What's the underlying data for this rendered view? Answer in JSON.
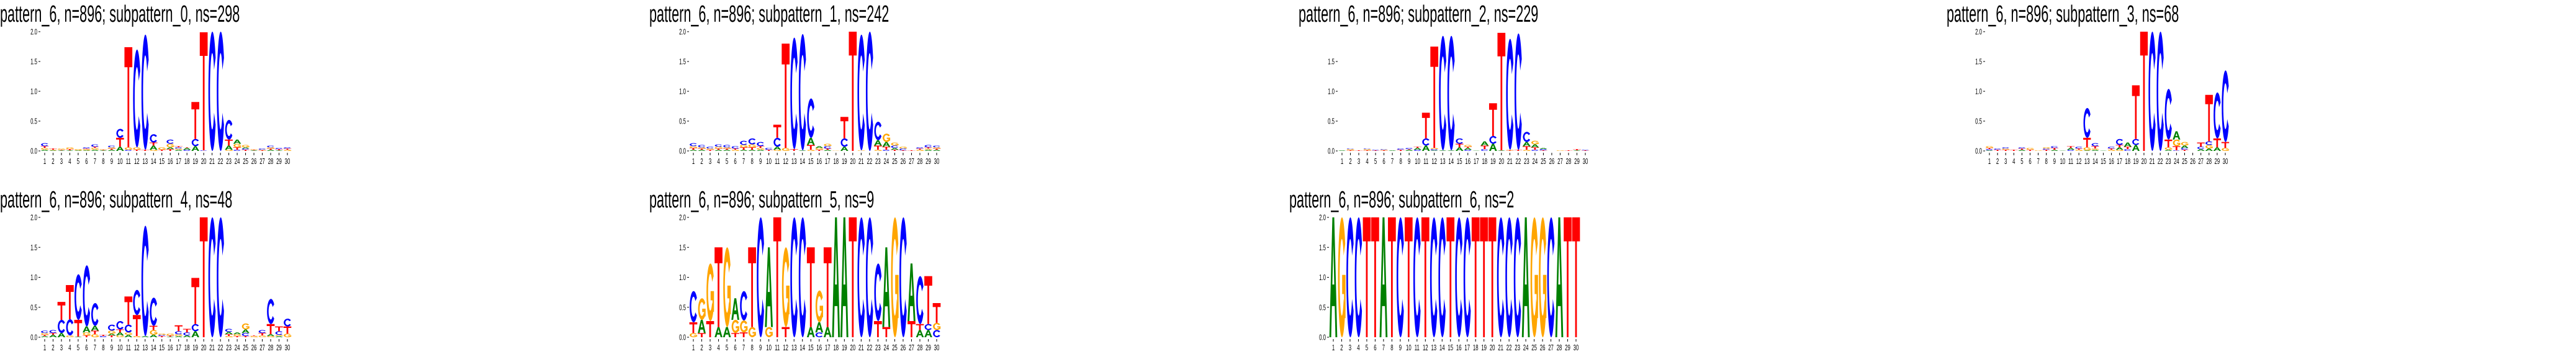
{
  "colors": {
    "A": "#008000",
    "C": "#0000ff",
    "G": "#ffa500",
    "T": "#ff0000"
  },
  "chart_data": [
    {
      "type": "sequence-logo",
      "title": "pattern_6, n=896; subpattern_0, ns=298",
      "ylim": [
        0,
        2.0
      ],
      "yticks": [
        "0.0",
        "0.5",
        "1.0",
        "1.5",
        "2.0"
      ],
      "positions": [
        "1",
        "2",
        "3",
        "4",
        "5",
        "6",
        "7",
        "8",
        "9",
        "10",
        "11",
        "12",
        "13",
        "14",
        "15",
        "16",
        "17",
        "18",
        "19",
        "20",
        "21",
        "22",
        "23",
        "24",
        "25",
        "26",
        "27",
        "28",
        "29",
        "30"
      ],
      "stacks": [
        "A.02 G.03 T.03 C.05",
        "A.01 G.01 T.02",
        "A.01 T.01 G.02",
        "A.01 T.02 G.03",
        "A.01 G.02",
        "A.01 G.02 T.01 C.02",
        "A.02 G.03 T.02 C.04",
        "A.01 T.01 G.01",
        "A.02 T.02 G.02 C.03",
        "A.07 T.15 C.15",
        "C.02 G.04 T1.68",
        "T.02 G.04 C1.64",
        "T.02 C1.93",
        "G.02 A.07 T.05 C.14",
        "T.02 G.04",
        "T.03 A.03 G.06 C.07",
        "A.02 G.02 C.02 T.02",
        "C.02 A.03 T.01",
        "A.08 C.12 T.62",
        "C.01 T1.98",
        "C2.0",
        "C2.0",
        "G.02 A.07 T.10 C.33",
        "C.02 T.04 G.06 A.07",
        "T.02 C.02 A.02 G.04",
        "A.01 T.01 G.01",
        "T.01 G.01 C.02",
        "A.02 T.02 G.02 C.03",
        "A.01 T.02 C.02",
        "G.02 T.02 C.02"
      ]
    },
    {
      "type": "sequence-logo",
      "title": "pattern_6, n=896; subpattern_1, ns=242",
      "ylim": [
        0,
        2.0
      ],
      "yticks": [
        "0.0",
        "0.5",
        "1.0",
        "1.5",
        "2.0"
      ],
      "positions": [
        "1",
        "2",
        "3",
        "4",
        "5",
        "6",
        "7",
        "8",
        "9",
        "10",
        "11",
        "12",
        "13",
        "14",
        "15",
        "16",
        "17",
        "18",
        "19",
        "20",
        "21",
        "22",
        "23",
        "24",
        "25",
        "26",
        "27",
        "28",
        "29",
        "30"
      ],
      "stacks": [
        "A.02 T.03 G.03 C.05",
        "A.02 T.02 G.02 C.04",
        "T.02 G.02 C.03",
        "A.02 T.02 G.03 C.04",
        "A.02 T.02 G.02 C.04",
        "G.02 T.02 C.04",
        "A.02 T.04 G.04 C.07",
        "A.02 T.04 G.05 C.10",
        "A.02 G.03 T.03 C.07",
        "T.02 C.03",
        "G.02 A.05 C.15 T.22",
        "G.05 T1.75",
        "T.03 C1.87",
        "A.01 C1.95",
        "G.02 T.08 A.12 C.66",
        "T.02 G.03 A.03",
        "A.02 T.02 C.04 G.04",
        "G.005",
        "A.07 C.14 T.36",
        "T2.0",
        "G.01 C1.94",
        "C2.0",
        "G.02 T.07 A.09 C.31",
        "C.02 T.05 A.08 G.14",
        "T.02 A.03 C.04 G.05",
        "T.01 C.03 G.03",
        "T.01",
        "G.02 T.02 C.02",
        "A.02 G.02 T.02 C.04",
        "A.02 T.02 G.02 C.03"
      ]
    },
    {
      "type": "sequence-logo",
      "title": "pattern_6, n=896; subpattern_2, ns=229",
      "ylim": [
        0,
        1.98
      ],
      "yticks": [
        "0.0",
        "0.5",
        "1.0",
        "1.5"
      ],
      "positions": [
        "1",
        "2",
        "3",
        "4",
        "5",
        "6",
        "7",
        "8",
        "9",
        "10",
        "11",
        "12",
        "13",
        "14",
        "15",
        "16",
        "17",
        "18",
        "19",
        "20",
        "21",
        "22",
        "23",
        "24",
        "25",
        "26",
        "27",
        "28",
        "29",
        "30"
      ],
      "stacks": [
        "A.01",
        "T.01 G.02 C.01",
        "T.01",
        "T.01 G.02 C.01",
        "T.01 C.01",
        "T.01 G.01 C.01",
        "A.01",
        "T.02 C.02",
        "A.02 T.01 C.02",
        "C.02 A.03 T.02",
        "A.09 C.12 T.43",
        "A.01 C.02 G.02 T1.70",
        "A.01 C1.92",
        "A.01 C1.92",
        "A.06 T.06 C.09",
        "C.02 A.03 T.02 G.03",
        "A.005",
        "C.03 T.06 A.07",
        "A.12 C.13 T.55",
        "A.01 T1.97",
        "T.01 G.01 C1.86",
        "T.02 C1.95",
        "G.02 T.06 A.07 C.17",
        "C.02 T.04 A.05 G.06",
        "T.01 C.02 A.02",
        "",
        "G.01",
        "T.01",
        "A.01 T.02",
        "T.01 C.01"
      ]
    },
    {
      "type": "sequence-logo",
      "title": "pattern_6, n=896; subpattern_3, ns=68",
      "ylim": [
        0,
        2.0
      ],
      "yticks": [
        "0.0",
        "0.5",
        "1.0",
        "1.5",
        "2.0"
      ],
      "positions": [
        "1",
        "2",
        "3",
        "4",
        "5",
        "6",
        "7",
        "8",
        "9",
        "10",
        "11",
        "12",
        "13",
        "14",
        "15",
        "16",
        "17",
        "18",
        "19",
        "20",
        "21",
        "22",
        "23",
        "24",
        "25",
        "26",
        "27",
        "28",
        "29",
        "30"
      ],
      "stacks": [
        "A.01 C.02 T.02 G.03",
        "T.02 C.02",
        "T.02 G.02 C.02",
        "T.02",
        "A.02 T.02 C.02",
        "T.02 G.03",
        "G.01",
        "T.02 C.02 G.02",
        "A.02 T.03 C.03",
        "A.005",
        "C.02 A.03 T.03",
        "G.02 T.02 C.03",
        "A.01 G.05 T.16 C.50",
        "A.02 G.02 T.04 C.05",
        "A.005",
        "G.02 T.02 C.03",
        "G.02 A.04 T.04 C.10",
        "C.03 T.04 A.07",
        "A.10 C.10 T.90",
        "T2.0",
        "C2.0",
        "C2.0",
        "A.02 G.04 T.13 C.85",
        "C.01 T.07 G.11 A.14",
        "T.02 C.03 A.04 G.06",
        "",
        "A.03 C.04 T.07",
        "A.04 G.06 C.06 T.78",
        "A.06 T.15 C.77",
        "G.05 T.10 C1.20"
      ]
    },
    {
      "type": "sequence-logo",
      "title": "pattern_6, n=896; subpattern_4, ns=48",
      "ylim": [
        0,
        2.0
      ],
      "yticks": [
        "0.0",
        "0.5",
        "1.0",
        "1.5",
        "2.0"
      ],
      "positions": [
        "1",
        "2",
        "3",
        "4",
        "5",
        "6",
        "7",
        "8",
        "9",
        "10",
        "11",
        "12",
        "13",
        "14",
        "15",
        "16",
        "17",
        "18",
        "19",
        "20",
        "21",
        "22",
        "23",
        "24",
        "25",
        "26",
        "27",
        "28",
        "29",
        "30"
      ],
      "stacks": [
        "A.02 T.02 G.03 C.04",
        "A.04 T.03 C.05",
        "A.07 C.22 T.30",
        "G.03 C.27 T.57",
        "A.01 T.28 C.76",
        "T.03 G.05 A.10 C1.02",
        "G.05 T.06 A.08 C.38",
        "C.02 T.02",
        "T.03 A.03 G.05 C.10",
        "G.03 A.05 T.05 C.14",
        "A.04 G.04 C.13 T.47",
        "G.02 T.35 C.42",
        "A.02 C1.84",
        "A.04 G.08 T.07 C.47",
        "T.02 C.02 G.02",
        "A.01 T.02 G.03",
        "A.02 G.03 C.05 T.10",
        "A.03 C.05 T.06",
        "A.10 C.12 T.77",
        "T2.0",
        "C2.0",
        "C2.0",
        "G.02 T.03 A.04 C.05",
        "T.02 G.03 A.03",
        "T.02 C.05 A.06 G.10",
        "G.02 T.01",
        "G.03 T.04 C.05",
        "G.02 A.03 T.17 C.42",
        "A.02 G.02 C.06 T.08",
        "G.06 T.12 C.13"
      ]
    },
    {
      "type": "sequence-logo",
      "title": "pattern_6, n=896; subpattern_5, ns=9",
      "ylim": [
        0,
        2.0
      ],
      "yticks": [
        "0.0",
        "0.5",
        "1.0",
        "1.5",
        "2.0"
      ],
      "positions": [
        "1",
        "2",
        "3",
        "4",
        "5",
        "6",
        "7",
        "8",
        "9",
        "10",
        "11",
        "12",
        "13",
        "14",
        "15",
        "16",
        "17",
        "18",
        "19",
        "20",
        "21",
        "22",
        "23",
        "24",
        "25",
        "26",
        "27",
        "28",
        "29",
        "30"
      ],
      "stacks": [
        "G.07 T.18 C.52",
        "T.07 A.22 G.36",
        "T.27 G.96",
        "A.17 T1.33",
        "A.17 G1.33",
        "T.07 G.22 A.36",
        "T.08 G.20 C.49",
        "G.17 T1.33",
        "C2.0",
        "G.17 A1.33",
        "T2.0",
        "T.17 G1.33",
        "C2.0",
        "C2.0",
        "A.17 T1.33",
        "C.08 A.17 G.53",
        "A.17 T1.33",
        "A2.0",
        "A2.0",
        "T2.0",
        "C2.0",
        "C2.0",
        "T.27 C.96",
        "T.17 A1.33",
        "G2.0",
        "C2.0",
        "T.27 A.96",
        "A.12 T.10 C.80",
        "A.12 C.10 T.80",
        "C.12 G.12 T.33"
      ]
    },
    {
      "type": "sequence-logo",
      "title": "pattern_6, n=896; subpattern_6, ns=2",
      "ylim": [
        0,
        2.0
      ],
      "yticks": [
        "0.0",
        "0.5",
        "1.0",
        "1.5",
        "2.0"
      ],
      "positions": [
        "1",
        "2",
        "3",
        "4",
        "5",
        "6",
        "7",
        "8",
        "9",
        "10",
        "11",
        "12",
        "13",
        "14",
        "15",
        "16",
        "17",
        "18",
        "19",
        "20",
        "21",
        "22",
        "23",
        "24",
        "25",
        "26",
        "27",
        "28",
        "29",
        "30"
      ],
      "stacks": [
        "A2.0",
        "G2.0",
        "C2.0",
        "C2.0",
        "T2.0",
        "T2.0",
        "A2.0",
        "T2.0",
        "C2.0",
        "T2.0",
        "C2.0",
        "T2.0",
        "C2.0",
        "C2.0",
        "T2.0",
        "C2.0",
        "C2.0",
        "T2.0",
        "T2.0",
        "T2.0",
        "C2.0",
        "C2.0",
        "C2.0",
        "A2.0",
        "G2.0",
        "G2.0",
        "C2.0",
        "A2.0",
        "T2.0",
        "T2.0"
      ]
    }
  ]
}
